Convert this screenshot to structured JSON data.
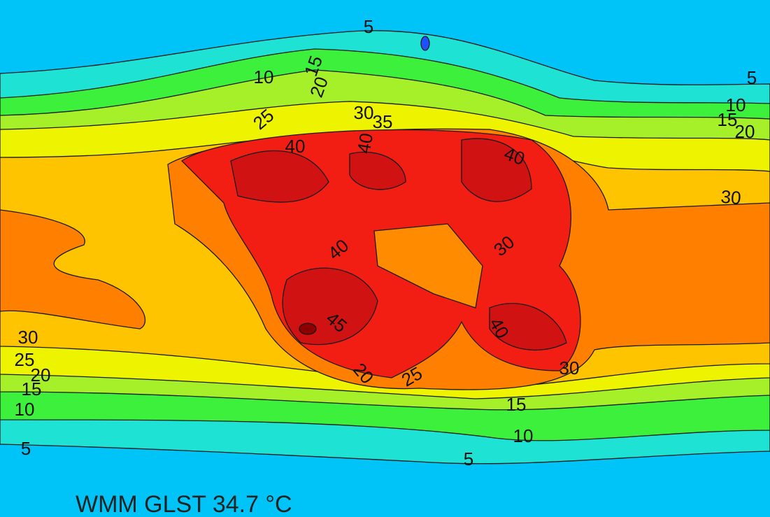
{
  "map": {
    "caption": "WMM GLST 34.7 °C",
    "contour_labels": [
      5,
      10,
      15,
      20,
      25,
      30,
      35,
      40,
      40,
      40,
      5,
      10,
      15,
      20,
      30,
      30,
      25,
      20,
      15,
      10,
      5,
      5,
      10,
      15,
      30,
      45,
      40,
      20,
      25,
      30,
      40
    ]
  }
}
